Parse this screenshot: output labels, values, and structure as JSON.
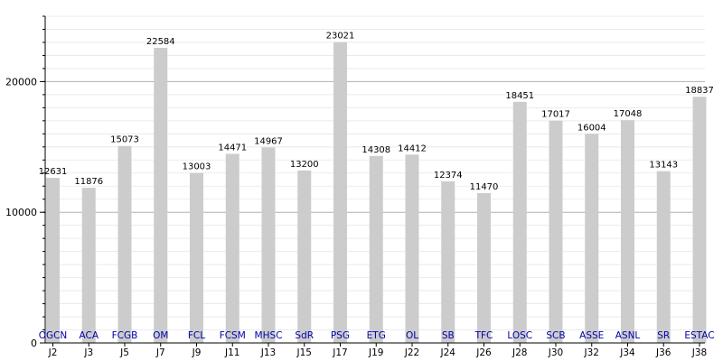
{
  "chart_data": {
    "type": "bar",
    "categories": [
      "J2",
      "J3",
      "J5",
      "J7",
      "J9",
      "J11",
      "J13",
      "J15",
      "J17",
      "J19",
      "J22",
      "J24",
      "J26",
      "J28",
      "J30",
      "J32",
      "J34",
      "J36",
      "J38"
    ],
    "teams": [
      "OGCN",
      "ACA",
      "FCGB",
      "OM",
      "FCL",
      "FCSM",
      "MHSC",
      "SdR",
      "PSG",
      "ETG",
      "OL",
      "SB",
      "TFC",
      "LOSC",
      "SCB",
      "ASSE",
      "ASNL",
      "SR",
      "ESTAC"
    ],
    "values": [
      12631,
      11876,
      15073,
      22584,
      13003,
      14471,
      14967,
      13200,
      23021,
      14308,
      14412,
      12374,
      11470,
      18451,
      17017,
      16004,
      17048,
      13143,
      18837
    ],
    "ylim": [
      0,
      25000
    ],
    "yticks": [
      0,
      10000,
      20000
    ],
    "minor_step": 1000,
    "grid": true,
    "colors": {
      "bar": "#cccccc",
      "major_grid": "#b0b0b0",
      "minor_grid": "#e6e6e6",
      "axis": "#000000",
      "team": "#0000aa"
    }
  }
}
